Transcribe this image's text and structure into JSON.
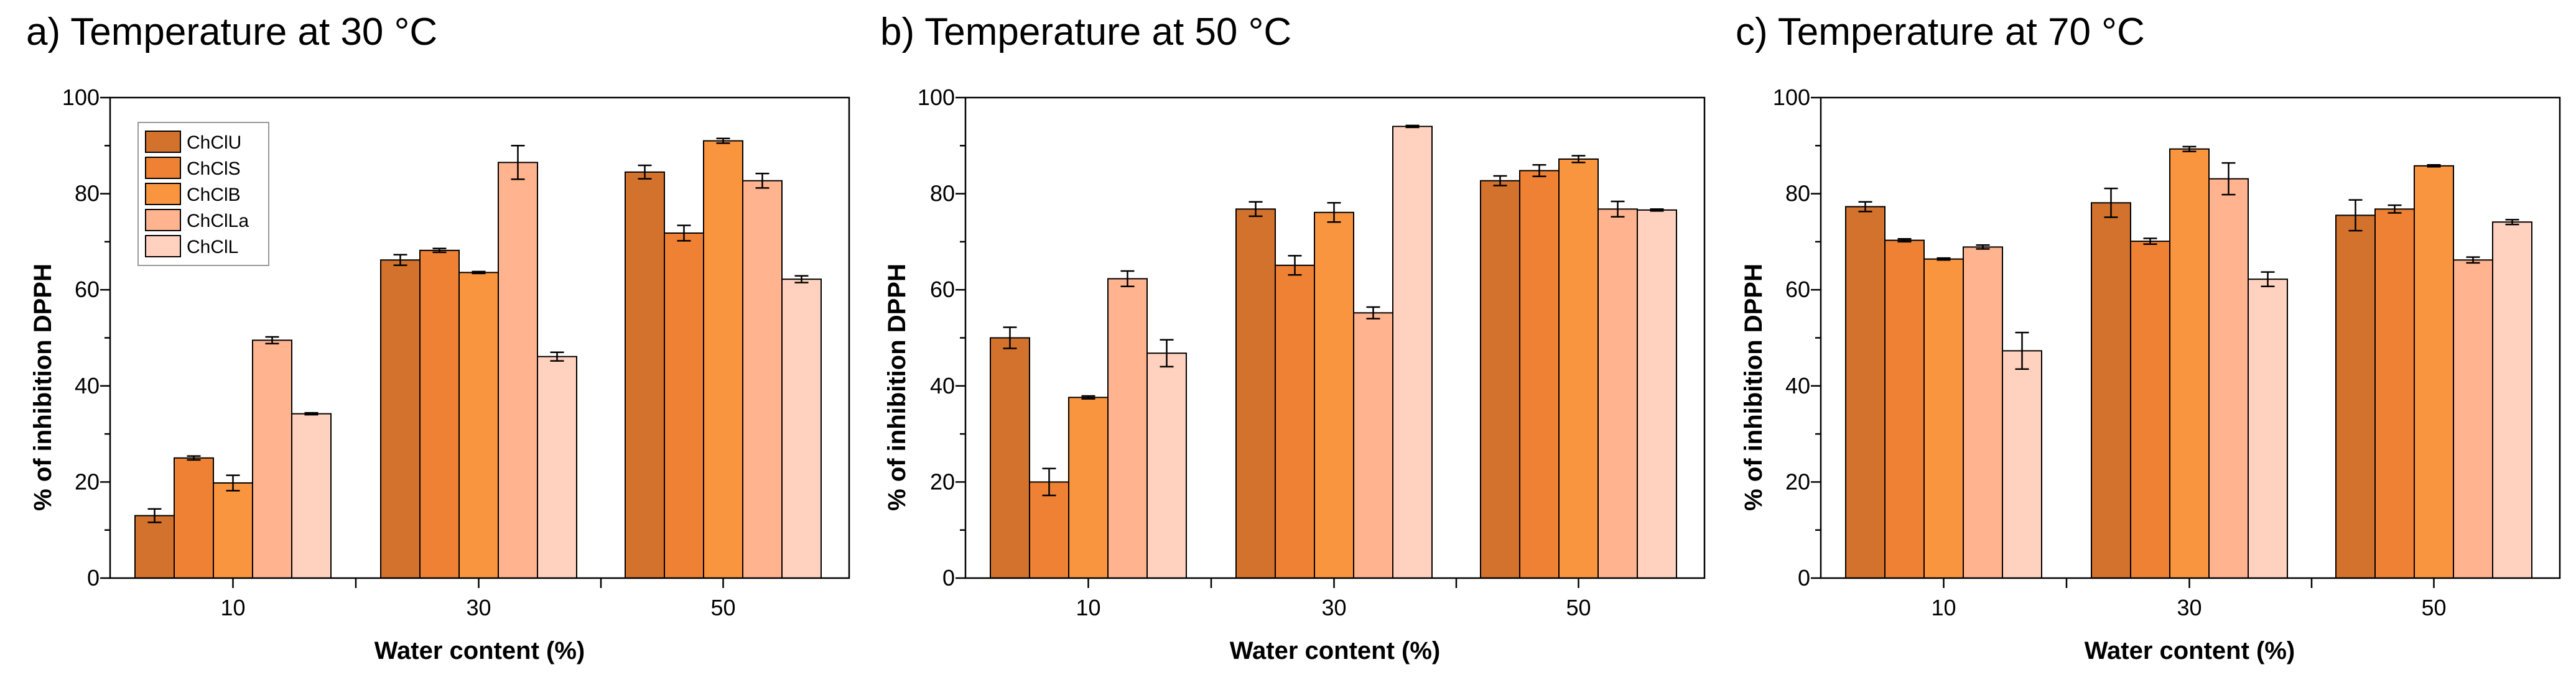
{
  "colors": {
    "series": [
      "#D2722C",
      "#EE8134",
      "#FA953F",
      "#FFB38F",
      "#FFD1BE"
    ],
    "stroke": "#000000",
    "background": "#ffffff"
  },
  "legend": {
    "placement": "top-left",
    "labels": [
      "ChClU",
      "ChClS",
      "ChClB",
      "ChClLa",
      "ChClL"
    ]
  },
  "chart_data": [
    {
      "type": "bar",
      "title": "a) Temperature at 30 °C",
      "xlabel": "Water content (%)",
      "ylabel": "% of inhibition DPPH",
      "ylim": [
        0,
        100
      ],
      "yticks": [
        "0",
        "20",
        "40",
        "60",
        "80",
        "100"
      ],
      "categories": [
        "10",
        "30",
        "50"
      ],
      "legend": true,
      "series": [
        {
          "name": "ChClU",
          "values": [
            13.0,
            66.2,
            84.5
          ],
          "errors": [
            1.4,
            1.1,
            1.4
          ]
        },
        {
          "name": "ChClS",
          "values": [
            25.0,
            68.2,
            71.8
          ],
          "errors": [
            0.4,
            0.4,
            1.6
          ]
        },
        {
          "name": "ChClB",
          "values": [
            19.8,
            63.6,
            91.0
          ],
          "errors": [
            1.6,
            0.2,
            0.5
          ]
        },
        {
          "name": "ChClLa",
          "values": [
            49.5,
            86.5,
            82.7
          ],
          "errors": [
            0.7,
            3.5,
            1.5
          ]
        },
        {
          "name": "ChClL",
          "values": [
            34.2,
            46.1,
            62.2
          ],
          "errors": [
            0.2,
            0.9,
            0.7
          ]
        }
      ]
    },
    {
      "type": "bar",
      "title": "b) Temperature at 50 °C",
      "xlabel": "Water content (%)",
      "ylabel": "% of inhibition DPPH",
      "ylim": [
        0,
        100
      ],
      "yticks": [
        "0",
        "20",
        "40",
        "60",
        "80",
        "100"
      ],
      "categories": [
        "10",
        "30",
        "50"
      ],
      "legend": false,
      "series": [
        {
          "name": "ChClU",
          "values": [
            50.0,
            76.8,
            82.7
          ],
          "errors": [
            2.2,
            1.5,
            1.0
          ]
        },
        {
          "name": "ChClS",
          "values": [
            20.0,
            65.1,
            84.8
          ],
          "errors": [
            2.8,
            2.0,
            1.2
          ]
        },
        {
          "name": "ChClB",
          "values": [
            37.6,
            76.1,
            87.2
          ],
          "errors": [
            0.3,
            2.0,
            0.7
          ]
        },
        {
          "name": "ChClLa",
          "values": [
            62.3,
            55.2,
            76.8
          ],
          "errors": [
            1.6,
            1.2,
            1.6
          ]
        },
        {
          "name": "ChClL",
          "values": [
            46.8,
            94.0,
            76.6
          ],
          "errors": [
            2.8,
            0.2,
            0.2
          ]
        }
      ]
    },
    {
      "type": "bar",
      "title": "c) Temperature at 70 °C",
      "xlabel": "Water content (%)",
      "ylabel": "% of inhibition DPPH",
      "ylim": [
        0,
        100
      ],
      "yticks": [
        "0",
        "20",
        "40",
        "60",
        "80",
        "100"
      ],
      "categories": [
        "10",
        "30",
        "50"
      ],
      "legend": false,
      "series": [
        {
          "name": "ChClU",
          "values": [
            77.3,
            78.1,
            75.5
          ],
          "errors": [
            1.0,
            3.0,
            3.2
          ]
        },
        {
          "name": "ChClS",
          "values": [
            70.3,
            70.1,
            76.8
          ],
          "errors": [
            0.3,
            0.6,
            0.8
          ]
        },
        {
          "name": "ChClB",
          "values": [
            66.4,
            89.3,
            85.8
          ],
          "errors": [
            0.2,
            0.5,
            0.2
          ]
        },
        {
          "name": "ChClLa",
          "values": [
            68.9,
            83.1,
            66.2
          ],
          "errors": [
            0.4,
            3.3,
            0.6
          ]
        },
        {
          "name": "ChClL",
          "values": [
            47.3,
            62.2,
            74.1
          ],
          "errors": [
            3.8,
            1.5,
            0.5
          ]
        }
      ]
    }
  ]
}
